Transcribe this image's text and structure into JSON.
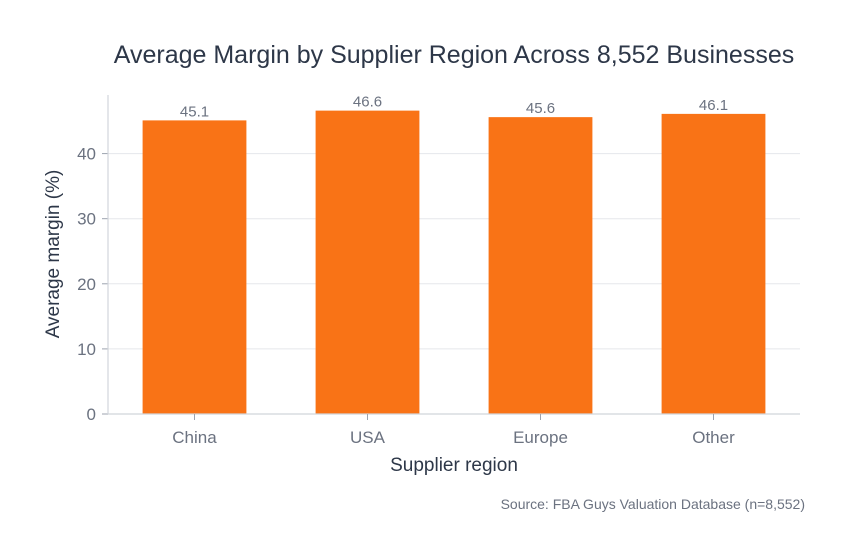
{
  "chart_data": {
    "type": "bar",
    "title": "Average Margin by Supplier Region Across 8,552 Businesses",
    "xlabel": "Supplier region",
    "ylabel": "Average margin (%)",
    "categories": [
      "China",
      "USA",
      "Europe",
      "Other"
    ],
    "values": [
      45.1,
      46.6,
      45.6,
      46.1
    ],
    "data_labels": [
      "45.1",
      "46.6",
      "45.6",
      "46.1"
    ],
    "ylim": [
      0,
      49
    ],
    "yticks": [
      0,
      10,
      20,
      30,
      40
    ],
    "grid": "horizontal",
    "bar_color": "#f97316",
    "source": "Source: FBA Guys Valuation Database (n=8,552)"
  }
}
